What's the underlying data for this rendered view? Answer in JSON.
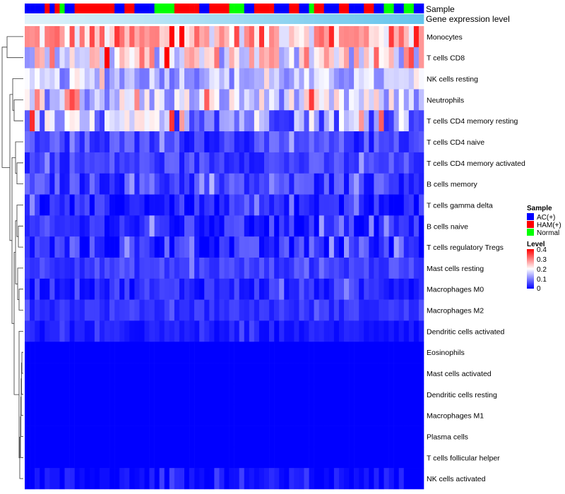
{
  "chart_data": {
    "type": "heatmap",
    "title": "",
    "xlabel": "",
    "ylabel": "",
    "annotations": [
      {
        "label": "Sample"
      },
      {
        "label": "Gene expression level"
      }
    ],
    "samples": [
      "AC(+)",
      "AC(+)",
      "AC(+)",
      "AC(+)",
      "HAM(+)",
      "AC(+)",
      "HAM(+)",
      "Normal",
      "AC(+)",
      "AC(+)",
      "HAM(+)",
      "HAM(+)",
      "HAM(+)",
      "HAM(+)",
      "HAM(+)",
      "HAM(+)",
      "HAM(+)",
      "HAM(+)",
      "AC(+)",
      "AC(+)",
      "HAM(+)",
      "HAM(+)",
      "AC(+)",
      "AC(+)",
      "AC(+)",
      "AC(+)",
      "Normal",
      "Normal",
      "Normal",
      "Normal",
      "HAM(+)",
      "HAM(+)",
      "HAM(+)",
      "HAM(+)",
      "HAM(+)",
      "AC(+)",
      "AC(+)",
      "HAM(+)",
      "HAM(+)",
      "HAM(+)",
      "HAM(+)",
      "Normal",
      "Normal",
      "Normal",
      "AC(+)",
      "AC(+)",
      "HAM(+)",
      "HAM(+)",
      "HAM(+)",
      "HAM(+)",
      "AC(+)",
      "AC(+)",
      "AC(+)",
      "HAM(+)",
      "HAM(+)",
      "AC(+)",
      "AC(+)",
      "Normal",
      "HAM(+)",
      "HAM(+)",
      "AC(+)",
      "AC(+)",
      "AC(+)",
      "HAM(+)",
      "HAM(+)",
      "AC(+)",
      "AC(+)",
      "AC(+)",
      "HAM(+)",
      "HAM(+)",
      "AC(+)",
      "AC(+)",
      "Normal",
      "Normal",
      "AC(+)",
      "AC(+)",
      "Normal",
      "Normal",
      "AC(+)",
      "AC(+)"
    ],
    "rows": [
      "Monocytes",
      "T cells CD8",
      "NK cells resting",
      "Neutrophils",
      "T cells CD4 memory resting",
      "T cells CD4 naive",
      "T cells CD4 memory activated",
      "B cells memory",
      "T cells gamma delta",
      "B cells naive",
      "T cells regulatory  Tregs",
      "Mast cells resting",
      "Macrophages M0",
      "Macrophages M2",
      "Dendritic cells activated",
      "Eosinophils",
      "Mast cells activated",
      "Dendritic cells resting",
      "Macrophages M1",
      "Plasma cells",
      "T cells follicular helper",
      "NK cells activated"
    ],
    "sample_legend": {
      "title": "Sample",
      "entries": [
        {
          "label": "AC(+)",
          "color": "#0000ff"
        },
        {
          "label": "HAM(+)",
          "color": "#ff0000"
        },
        {
          "label": "Normal",
          "color": "#00ff00"
        }
      ]
    },
    "level_legend": {
      "title": "Level",
      "range": [
        0,
        0.4
      ],
      "ticks": [
        "0.4",
        "0.3",
        "0.2",
        "0.1",
        "0"
      ],
      "colors": [
        "#0000ff",
        "#ffffff",
        "#ff0000"
      ]
    },
    "row_means": [
      0.26,
      0.21,
      0.14,
      0.16,
      0.13,
      0.05,
      0.05,
      0.05,
      0.02,
      0.03,
      0.03,
      0.05,
      0.035,
      0.04,
      0.02,
      0.0,
      0.0,
      0.0,
      0.0,
      0.0,
      0.0,
      0.01
    ],
    "row_spread": [
      0.06,
      0.07,
      0.035,
      0.05,
      0.06,
      0.025,
      0.02,
      0.025,
      0.025,
      0.025,
      0.03,
      0.015,
      0.02,
      0.012,
      0.01,
      0.0,
      0.0,
      0.0,
      0.0,
      0.0,
      0.0,
      0.015
    ]
  }
}
